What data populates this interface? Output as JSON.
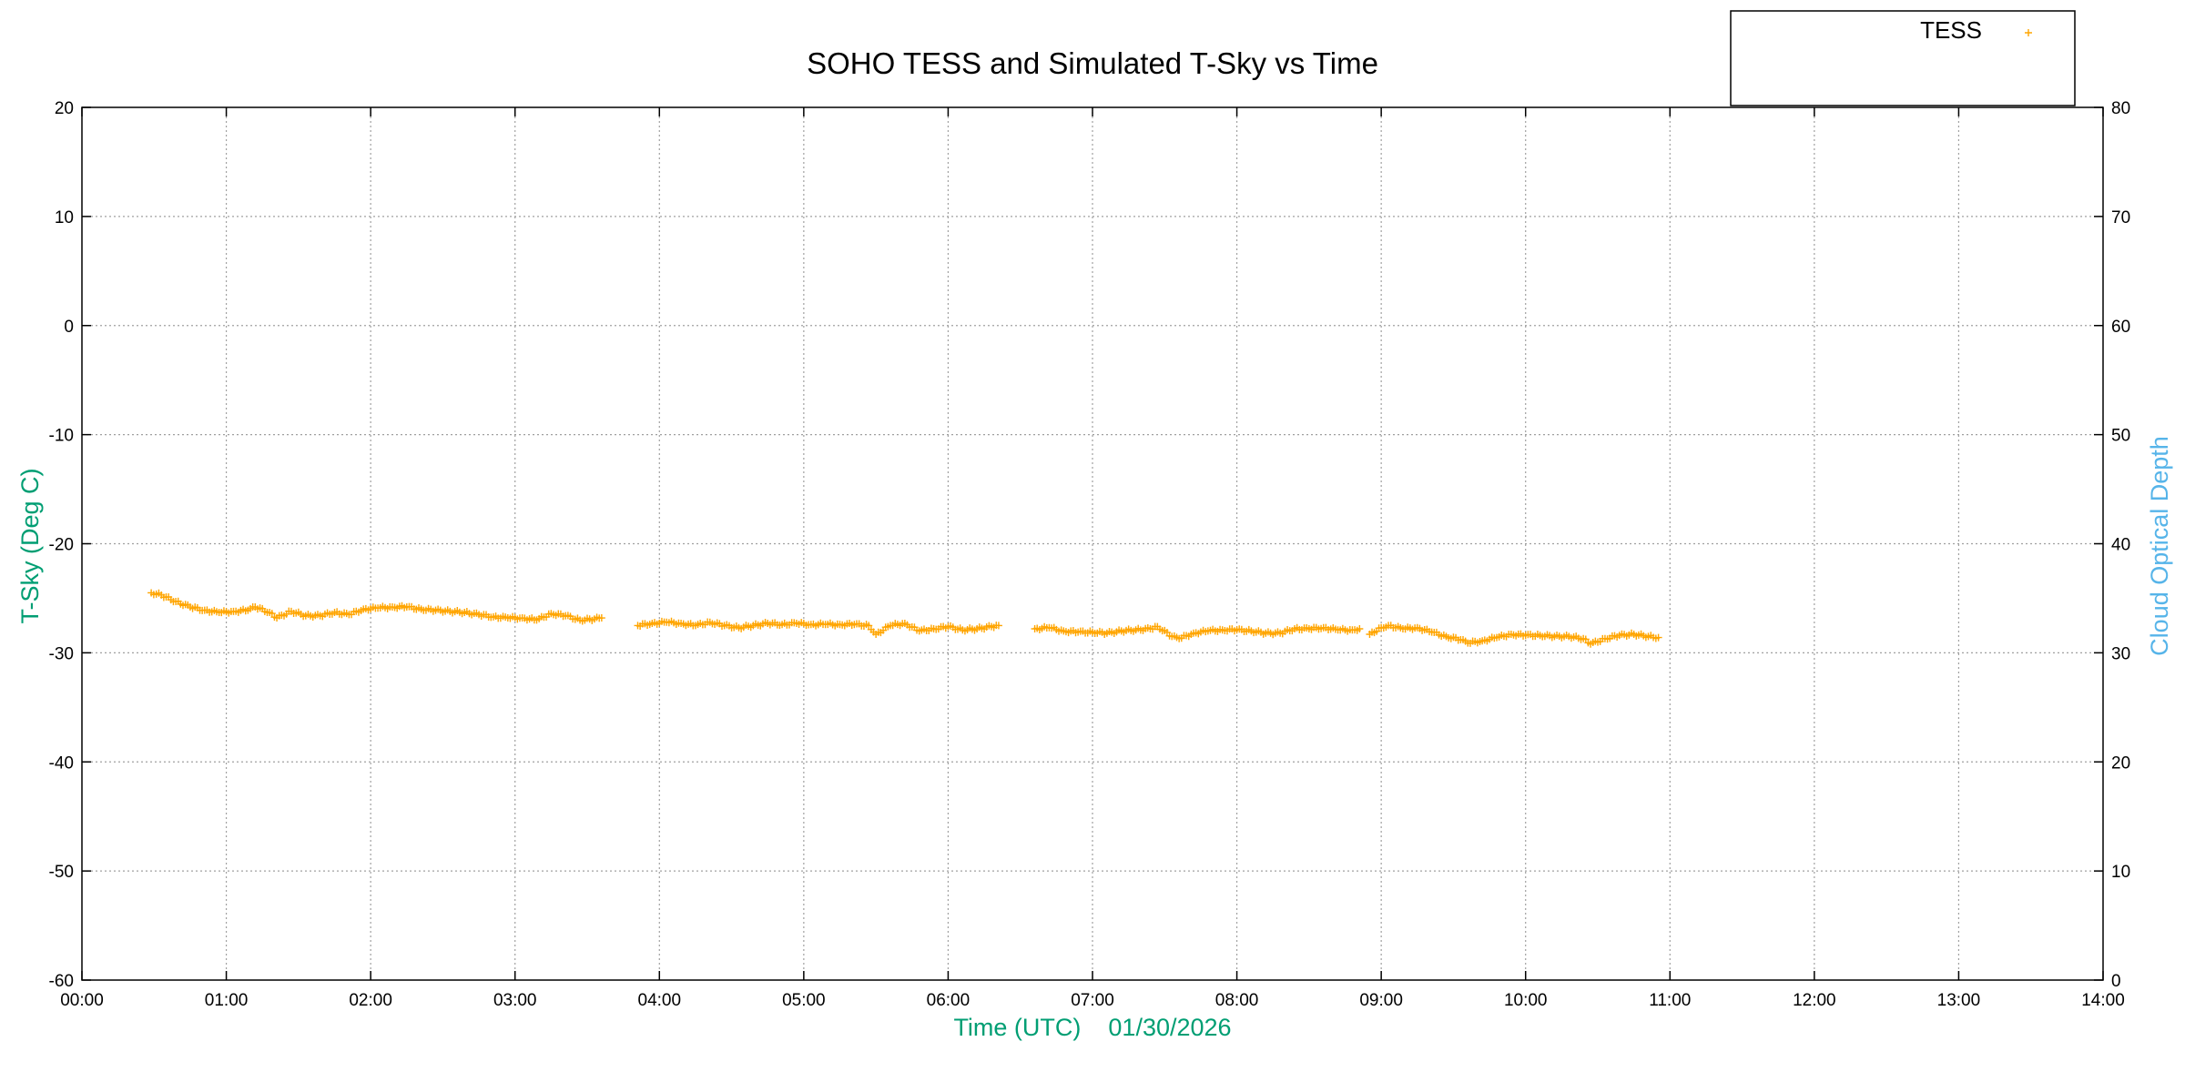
{
  "chart_data": {
    "type": "scatter",
    "title": "SOHO TESS and Simulated T-Sky vs Time",
    "xlabel": "Time (UTC)    01/30/2026",
    "ylabel": "T-Sky (Deg C)",
    "y2label": "Cloud Optical Depth",
    "xlim": [
      0,
      14
    ],
    "ylim": [
      -60,
      20
    ],
    "y2lim": [
      0,
      80
    ],
    "x_ticks": [
      "00:00",
      "01:00",
      "02:00",
      "03:00",
      "04:00",
      "05:00",
      "06:00",
      "07:00",
      "08:00",
      "09:00",
      "10:00",
      "11:00",
      "12:00",
      "13:00",
      "14:00"
    ],
    "y_ticks": [
      20,
      10,
      0,
      -10,
      -20,
      -30,
      -40,
      -50,
      -60
    ],
    "y2_ticks": [
      80,
      70,
      60,
      50,
      40,
      30,
      20,
      10,
      0
    ],
    "grid": true,
    "legend_position": "top-right",
    "colors": {
      "tess": "#ffa500",
      "left_axis_label": "#009e73",
      "right_axis_label": "#56b4e9",
      "xlabel": "#009e73"
    },
    "series": [
      {
        "name": "TESS",
        "marker": "+",
        "segments": [
          {
            "x": [
              0.48,
              0.55,
              0.65,
              0.75,
              0.85,
              0.95,
              1.05,
              1.15,
              1.2,
              1.3,
              1.35,
              1.45,
              1.55,
              1.65,
              1.75,
              1.85,
              1.95,
              2.05,
              2.15,
              2.25,
              2.35,
              2.45,
              2.55,
              2.65,
              2.75,
              2.85,
              2.95,
              3.05,
              3.15,
              3.25,
              3.35,
              3.45,
              3.55,
              3.6
            ],
            "y": [
              -24.5,
              -24.7,
              -25.3,
              -25.8,
              -26.1,
              -26.3,
              -26.2,
              -26.1,
              -25.8,
              -26.3,
              -26.8,
              -26.2,
              -26.6,
              -26.6,
              -26.3,
              -26.5,
              -26.0,
              -25.9,
              -25.8,
              -25.8,
              -26.0,
              -26.1,
              -26.2,
              -26.3,
              -26.5,
              -26.7,
              -26.8,
              -26.8,
              -27.0,
              -26.4,
              -26.6,
              -27.0,
              -26.9,
              -26.8
            ]
          },
          {
            "x": [
              3.85,
              3.95,
              4.05,
              4.15,
              4.25,
              4.35,
              4.45,
              4.55,
              4.65,
              4.75,
              4.85,
              4.95,
              5.05,
              5.15,
              5.25,
              5.35,
              5.45,
              5.5,
              5.6,
              5.7,
              5.8,
              5.9,
              6.0,
              6.1,
              6.2,
              6.3,
              6.35
            ],
            "y": [
              -27.5,
              -27.3,
              -27.2,
              -27.3,
              -27.5,
              -27.2,
              -27.5,
              -27.7,
              -27.5,
              -27.3,
              -27.4,
              -27.3,
              -27.4,
              -27.4,
              -27.4,
              -27.4,
              -27.5,
              -28.3,
              -27.5,
              -27.3,
              -28.0,
              -27.8,
              -27.6,
              -27.9,
              -27.8,
              -27.6,
              -27.5
            ]
          },
          {
            "x": [
              6.6,
              6.7,
              6.8,
              6.9,
              7.0,
              7.1,
              7.2,
              7.3,
              7.4,
              7.45,
              7.55,
              7.6,
              7.7,
              7.8,
              7.9,
              8.0,
              8.1,
              8.2,
              8.3,
              8.4,
              8.5,
              8.6,
              8.7,
              8.8,
              8.85
            ],
            "y": [
              -27.8,
              -27.7,
              -28.0,
              -28.1,
              -28.1,
              -28.2,
              -28.0,
              -27.9,
              -27.8,
              -27.6,
              -28.5,
              -28.7,
              -28.2,
              -28.0,
              -27.9,
              -27.9,
              -28.0,
              -28.2,
              -28.2,
              -27.8,
              -27.8,
              -27.7,
              -27.9,
              -27.9,
              -27.8
            ]
          },
          {
            "x": [
              8.92,
              9.0,
              9.05,
              9.15,
              9.25,
              9.35,
              9.45,
              9.55,
              9.6,
              9.7,
              9.8,
              9.9,
              10.0,
              10.1,
              10.2,
              10.3,
              10.4,
              10.45,
              10.55,
              10.65,
              10.75,
              10.85,
              10.92
            ],
            "y": [
              -28.3,
              -27.7,
              -27.5,
              -27.8,
              -27.7,
              -28.1,
              -28.5,
              -28.8,
              -29.1,
              -28.9,
              -28.6,
              -28.3,
              -28.4,
              -28.4,
              -28.5,
              -28.5,
              -28.7,
              -29.2,
              -28.7,
              -28.4,
              -28.3,
              -28.5,
              -28.6
            ]
          }
        ]
      }
    ]
  }
}
